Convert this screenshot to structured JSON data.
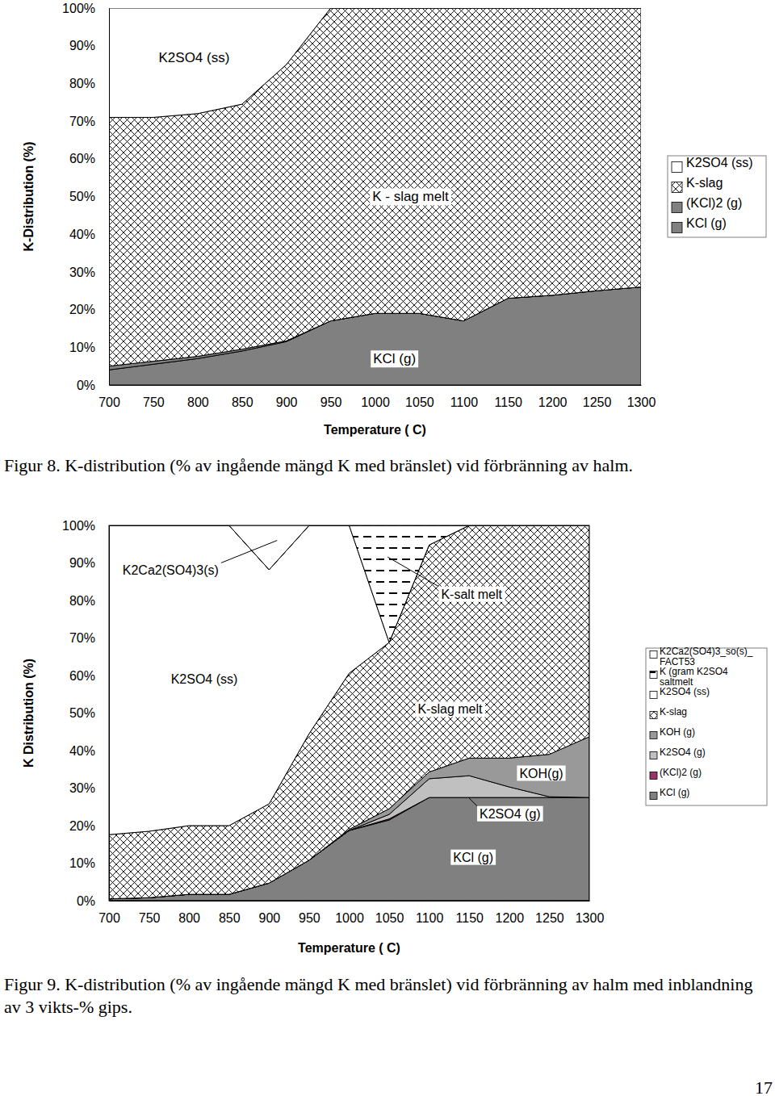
{
  "chart_data": [
    {
      "type": "area",
      "stacked": true,
      "title": "Figur 8. K-distribution (% av ingående mängd K med bränslet) vid förbränning av halm.",
      "x_label": "Temperature ( C)",
      "y_label": "K-Distribution (%)",
      "x": [
        700,
        750,
        800,
        850,
        900,
        950,
        1000,
        1050,
        1100,
        1150,
        1200,
        1250,
        1300
      ],
      "xlim": [
        700,
        1300
      ],
      "xticks": [
        700,
        750,
        800,
        850,
        900,
        950,
        1000,
        1050,
        1100,
        1150,
        1200,
        1250,
        1300
      ],
      "ylim": [
        0,
        100
      ],
      "yticks": [
        {
          "value": 0,
          "label": "0%"
        },
        {
          "value": 10,
          "label": "10%"
        },
        {
          "value": 20,
          "label": "20%"
        },
        {
          "value": 30,
          "label": "30%"
        },
        {
          "value": 40,
          "label": "40%"
        },
        {
          "value": 50,
          "label": "50%"
        },
        {
          "value": 60,
          "label": "60%"
        },
        {
          "value": 70,
          "label": "70%"
        },
        {
          "value": 80,
          "label": "80%"
        },
        {
          "value": 90,
          "label": "90%"
        },
        {
          "value": 100,
          "label": "100%"
        }
      ],
      "legend": "right",
      "series": [
        {
          "name": "KCl (g)",
          "color": "#808080",
          "values": [
            4,
            5.5,
            7,
            9,
            11.5,
            17,
            19,
            19,
            17,
            23,
            23.8,
            25,
            26
          ]
        },
        {
          "name": "(KCl)2 (g)",
          "color": "#808080",
          "values": [
            1,
            0.8,
            0.6,
            0.5,
            0.2,
            0,
            0,
            0,
            0,
            0,
            0,
            0,
            0
          ]
        },
        {
          "name": "K-slag",
          "color": "#ffffff",
          "marker": "crosshatch",
          "values": [
            66,
            64.7,
            64.4,
            65,
            73.3,
            83,
            81,
            81,
            83,
            77,
            76.2,
            75,
            74
          ]
        },
        {
          "name": "K2SO4 (ss)",
          "color": "#ffffff",
          "values": [
            29,
            29,
            28,
            25.5,
            15,
            0,
            0,
            0,
            0,
            0,
            0,
            0,
            0
          ]
        }
      ],
      "annotations": [
        {
          "text": "K2SO4 (ss)",
          "x": 796,
          "y": 87
        },
        {
          "text": "K - slag melt",
          "x": 1040,
          "y": 50
        },
        {
          "text": "KCl (g)",
          "x": 1022,
          "y": 7
        }
      ]
    },
    {
      "type": "area",
      "stacked": true,
      "title": "Figur 9. K-distribution (% av ingående mängd K med bränslet) vid förbränning av halm med inblandning av 3 vikts-% gips.",
      "x_label": "Temperature ( C)",
      "y_label": "K Distribution (%)",
      "x": [
        700,
        750,
        800,
        850,
        900,
        950,
        1000,
        1050,
        1100,
        1150,
        1200,
        1250,
        1300
      ],
      "xlim": [
        700,
        1300
      ],
      "xticks": [
        700,
        750,
        800,
        850,
        900,
        950,
        1000,
        1050,
        1100,
        1150,
        1200,
        1250,
        1300
      ],
      "ylim": [
        0,
        100
      ],
      "yticks": [
        {
          "value": 0,
          "label": "0%"
        },
        {
          "value": 10,
          "label": "10%"
        },
        {
          "value": 20,
          "label": "20%"
        },
        {
          "value": 30,
          "label": "30%"
        },
        {
          "value": 40,
          "label": "40%"
        },
        {
          "value": 50,
          "label": "50%"
        },
        {
          "value": 60,
          "label": "60%"
        },
        {
          "value": 70,
          "label": "70%"
        },
        {
          "value": 80,
          "label": "80%"
        },
        {
          "value": 90,
          "label": "90%"
        },
        {
          "value": 100,
          "label": "100%"
        }
      ],
      "legend": "right",
      "series": [
        {
          "name": "KCl (g)",
          "color": "#808080",
          "values": [
            0.5,
            0.8,
            1.7,
            1.7,
            4.7,
            10.8,
            18.7,
            21.5,
            27.5,
            27.5,
            27.5,
            27.5,
            27.5
          ]
        },
        {
          "name": "(KCl)2 (g)",
          "color": "#993366",
          "values": [
            0,
            0,
            0,
            0,
            0,
            0,
            0,
            0.3,
            0,
            0,
            0,
            0,
            0
          ]
        },
        {
          "name": "K2SO4 (g)",
          "color": "#c0c0c0",
          "values": [
            0,
            0,
            0,
            0,
            0,
            0,
            0,
            1.2,
            5,
            5.8,
            2.8,
            0.2,
            0
          ]
        },
        {
          "name": "KOH (g)",
          "color": "#999999",
          "values": [
            0,
            0,
            0,
            0,
            0,
            0,
            0.3,
            1.5,
            1.8,
            4.7,
            7.7,
            11.3,
            16.2
          ]
        },
        {
          "name": "K-slag",
          "color": "#ffffff",
          "marker": "crosshatch",
          "values": [
            17.1,
            17.7,
            18.3,
            18.3,
            21.1,
            33.7,
            41.6,
            44.3,
            60.5,
            62,
            62,
            61,
            56.3
          ]
        },
        {
          "name": "K2SO4 (ss)",
          "color": "#ffffff",
          "values": [
            82.4,
            81.5,
            80,
            80,
            62.4,
            55.5,
            39.4,
            0,
            0,
            0,
            0,
            0,
            0
          ]
        },
        {
          "name": "K (gram K2SO4 saltmelt",
          "color": "#ffffff",
          "marker": "dashes",
          "values": [
            0,
            0,
            0,
            0,
            0,
            0,
            0,
            31.2,
            5.2,
            0,
            0,
            0,
            0
          ]
        },
        {
          "name": "K2Ca2(SO4)3_so(s)_FACT53",
          "color": "#ffffff",
          "values": [
            0,
            0,
            0,
            0,
            11.8,
            0,
            0,
            0,
            0,
            0,
            0,
            0,
            0
          ]
        }
      ],
      "annotations": [
        {
          "text": "K2Ca2(SO4)3(s)",
          "x": 777,
          "y": 88,
          "arrow": [
            910,
            96
          ]
        },
        {
          "text": "K2SO4 (ss)",
          "x": 819,
          "y": 59
        },
        {
          "text": "K-salt melt",
          "x": 1153,
          "y": 81.7,
          "arrow": [
            1048,
            91.6
          ]
        },
        {
          "text": "K-slag melt",
          "x": 1126,
          "y": 51
        },
        {
          "text": "KOH(g)",
          "x": 1240,
          "y": 34
        },
        {
          "text": "K2SO4 (g)",
          "x": 1201,
          "y": 23.2,
          "arrow": [
            1149,
            27.5
          ]
        },
        {
          "text": "KCl (g)",
          "x": 1155,
          "y": 11.6
        }
      ]
    }
  ],
  "page_number": 17
}
